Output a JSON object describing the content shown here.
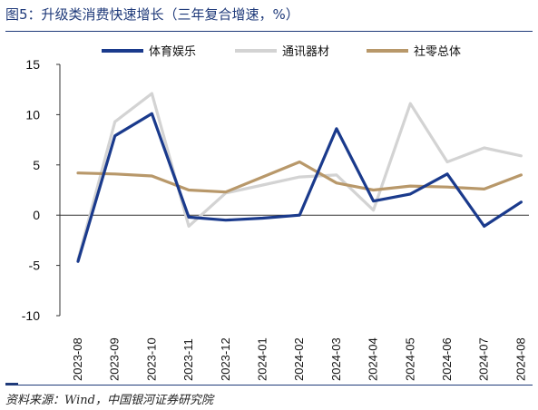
{
  "title": "图5：升级类消费快速增长（三年复合增速，%）",
  "source": "资料来源：Wind，中国银河证券研究院",
  "chart_data": {
    "type": "line",
    "categories": [
      "2023-08",
      "2023-09",
      "2023-10",
      "2023-11",
      "2023-12",
      "2024-01",
      "2024-02",
      "2024-03",
      "2024-04",
      "2024-05",
      "2024-06",
      "2024-07",
      "2024-08"
    ],
    "ylim": [
      -10,
      15
    ],
    "yticks": [
      15,
      10,
      5,
      0,
      -5,
      -10
    ],
    "ytick_labels": [
      "15",
      "10",
      "5",
      "0",
      "-5",
      "-10"
    ],
    "legend_position": "top",
    "grid": false,
    "series": [
      {
        "name": "体育娱乐",
        "color": "#1a3a8c",
        "values": [
          -4.6,
          7.9,
          10.1,
          -0.2,
          -0.5,
          -0.3,
          0.0,
          8.6,
          1.4,
          2.1,
          4.1,
          -1.1,
          1.3
        ]
      },
      {
        "name": "通讯器材",
        "color": "#d3d3d3",
        "values": [
          -4.4,
          9.3,
          12.1,
          -1.1,
          2.2,
          3.0,
          3.8,
          4.0,
          0.5,
          11.1,
          5.3,
          6.7,
          5.9
        ]
      },
      {
        "name": "社零总体",
        "color": "#b8986a",
        "values": [
          4.2,
          4.1,
          3.9,
          2.5,
          2.3,
          3.8,
          5.3,
          3.2,
          2.5,
          2.9,
          2.8,
          2.6,
          4.0
        ]
      }
    ]
  }
}
